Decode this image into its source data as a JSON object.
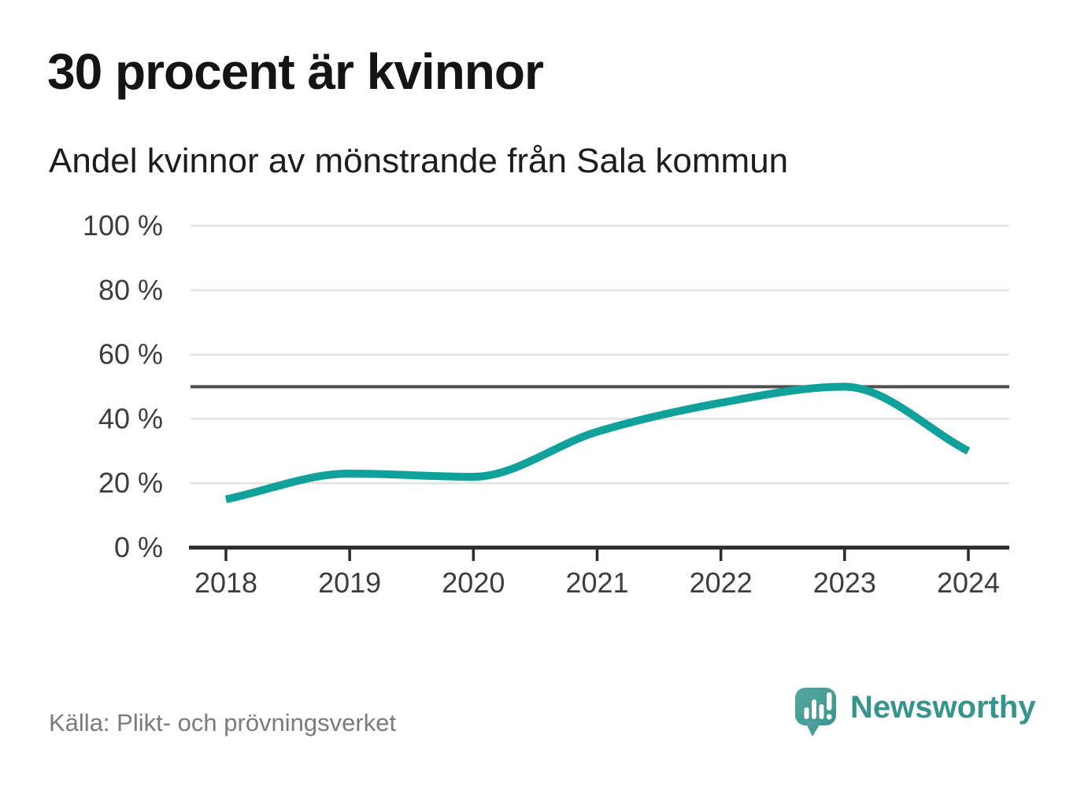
{
  "header": {
    "title": "30 procent är kvinnor",
    "subtitle": "Andel kvinnor av mönstrande från Sala kommun"
  },
  "chart_data": {
    "type": "line",
    "categories": [
      "2018",
      "2019",
      "2020",
      "2021",
      "2022",
      "2023",
      "2024"
    ],
    "series": [
      {
        "name": "Andel kvinnor av mönstrande",
        "values": [
          15,
          23,
          22,
          36,
          45,
          50,
          30
        ]
      }
    ],
    "unit": "%",
    "ylim": [
      0,
      100
    ],
    "y_ticks": [
      0,
      20,
      40,
      60,
      80,
      100
    ],
    "y_tick_labels": [
      "0 %",
      "20 %",
      "40 %",
      "60 %",
      "80 %",
      "100 %"
    ],
    "reference_line": {
      "value": 50
    },
    "grid": true,
    "legend": "none",
    "colors": {
      "line": "#10a29a",
      "grid": "#e3e3e3",
      "reference": "#4d4d4d",
      "axis": "#2b2b2b",
      "tick_text": "#3d3d3d"
    }
  },
  "footer": {
    "source": "Källa: Plikt- och prövningsverket",
    "brand": "Newsworthy",
    "brand_color": "#35948c"
  }
}
